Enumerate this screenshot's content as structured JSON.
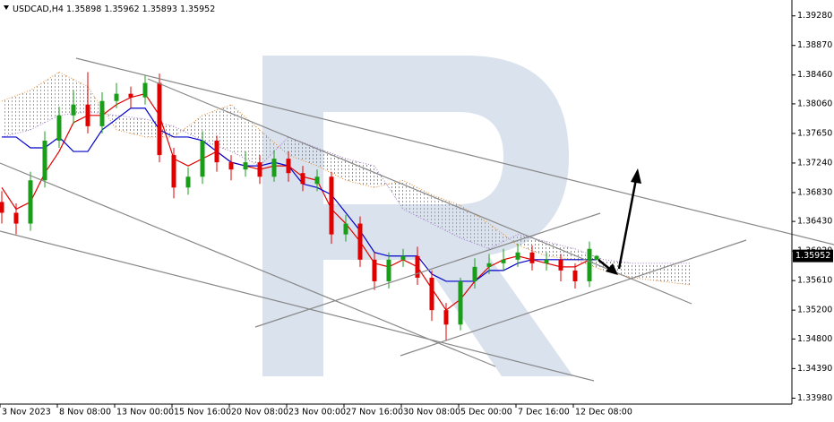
{
  "chart_data": {
    "type": "candlestick",
    "symbol": "USDCAD,H4",
    "x": [
      0,
      4,
      8,
      12,
      16,
      20,
      24,
      28,
      32,
      36,
      40,
      44,
      48,
      52,
      56,
      60,
      64,
      68,
      72,
      76,
      80,
      84,
      88,
      92,
      96,
      100,
      104,
      108,
      112,
      116,
      120,
      124,
      128,
      132,
      136,
      140,
      144,
      148,
      152,
      156,
      160,
      164,
      166
    ],
    "open": [
      1.367,
      1.3655,
      1.364,
      1.37,
      1.3755,
      1.379,
      1.3805,
      1.3775,
      1.381,
      1.382,
      1.3815,
      1.3835,
      1.3735,
      1.369,
      1.3705,
      1.3755,
      1.3725,
      1.3715,
      1.3725,
      1.3705,
      1.373,
      1.371,
      1.3695,
      1.3705,
      1.3625,
      1.364,
      1.359,
      1.356,
      1.359,
      1.3595,
      1.3565,
      1.352,
      1.35,
      1.356,
      1.358,
      1.3585,
      1.359,
      1.36,
      1.3585,
      1.359,
      1.3575,
      1.356,
      1.35898
    ],
    "high": [
      1.3685,
      1.3668,
      1.3712,
      1.3768,
      1.3802,
      1.3825,
      1.385,
      1.3822,
      1.3835,
      1.383,
      1.3845,
      1.3848,
      1.3745,
      1.3718,
      1.3768,
      1.3762,
      1.3735,
      1.374,
      1.3735,
      1.3742,
      1.374,
      1.372,
      1.3715,
      1.3712,
      1.3652,
      1.365,
      1.36,
      1.36,
      1.3605,
      1.3608,
      1.3575,
      1.353,
      1.3565,
      1.3592,
      1.3598,
      1.3605,
      1.3612,
      1.361,
      1.36,
      1.3598,
      1.3585,
      1.3615,
      1.35962
    ],
    "low": [
      1.364,
      1.3625,
      1.363,
      1.369,
      1.3745,
      1.3778,
      1.3765,
      1.3765,
      1.38,
      1.38,
      1.3805,
      1.3725,
      1.3675,
      1.368,
      1.3695,
      1.3712,
      1.37,
      1.3705,
      1.3695,
      1.3698,
      1.3698,
      1.3685,
      1.3685,
      1.3612,
      1.3615,
      1.358,
      1.3548,
      1.355,
      1.358,
      1.3555,
      1.3505,
      1.3478,
      1.3492,
      1.355,
      1.357,
      1.3575,
      1.358,
      1.3575,
      1.3575,
      1.356,
      1.355,
      1.3552,
      1.35893
    ],
    "close": [
      1.3655,
      1.364,
      1.37,
      1.3755,
      1.379,
      1.3805,
      1.3775,
      1.381,
      1.382,
      1.3815,
      1.3835,
      1.3735,
      1.369,
      1.3705,
      1.3755,
      1.3725,
      1.3715,
      1.3725,
      1.3705,
      1.373,
      1.371,
      1.3695,
      1.3705,
      1.3625,
      1.364,
      1.359,
      1.356,
      1.359,
      1.3595,
      1.3565,
      1.352,
      1.35,
      1.356,
      1.358,
      1.3585,
      1.359,
      1.36,
      1.3585,
      1.359,
      1.3575,
      1.356,
      1.3605,
      1.35952
    ],
    "up_color": "#1a9e1a",
    "down_color": "#e00000",
    "lines": [
      {
        "color": "#e00000",
        "values": [
          1.369,
          1.366,
          1.367,
          1.371,
          1.374,
          1.378,
          1.379,
          1.379,
          1.3805,
          1.3815,
          1.382,
          1.379,
          1.373,
          1.372,
          1.373,
          1.374,
          1.3725,
          1.372,
          1.3715,
          1.372,
          1.372,
          1.3705,
          1.37,
          1.366,
          1.364,
          1.3615,
          1.3585,
          1.358,
          1.359,
          1.358,
          1.355,
          1.352,
          1.3535,
          1.356,
          1.358,
          1.359,
          1.3595,
          1.359,
          1.3585,
          1.358,
          1.358,
          1.359,
          1.359
        ]
      },
      {
        "color": "#0000cc",
        "values": [
          1.376,
          1.376,
          1.3745,
          1.3745,
          1.376,
          1.374,
          1.374,
          1.377,
          1.3785,
          1.38,
          1.38,
          1.377,
          1.376,
          1.376,
          1.3755,
          1.374,
          1.3725,
          1.372,
          1.372,
          1.3725,
          1.372,
          1.3695,
          1.369,
          1.368,
          1.3655,
          1.363,
          1.36,
          1.3595,
          1.3595,
          1.3595,
          1.357,
          1.356,
          1.356,
          1.356,
          1.3575,
          1.3575,
          1.3585,
          1.359,
          1.359,
          1.359,
          1.359,
          1.359,
          1.359
        ]
      }
    ],
    "cloud": {
      "x": [
        0,
        8,
        16,
        24,
        32,
        40,
        48,
        56,
        64,
        72,
        80,
        88,
        96,
        104,
        112,
        120,
        128,
        136,
        144,
        152,
        160,
        168,
        176,
        184,
        192
      ],
      "span_a": [
        1.381,
        1.3825,
        1.385,
        1.383,
        1.377,
        1.376,
        1.376,
        1.379,
        1.3805,
        1.377,
        1.3735,
        1.372,
        1.37,
        1.369,
        1.37,
        1.368,
        1.3665,
        1.364,
        1.361,
        1.3595,
        1.359,
        1.3575,
        1.3565,
        1.356,
        1.3555
      ],
      "span_b": [
        1.376,
        1.377,
        1.379,
        1.3795,
        1.379,
        1.3785,
        1.3775,
        1.3755,
        1.374,
        1.372,
        1.376,
        1.3745,
        1.373,
        1.372,
        1.366,
        1.364,
        1.362,
        1.3605,
        1.3625,
        1.3615,
        1.3605,
        1.359,
        1.3585,
        1.3585,
        1.3585
      ],
      "up_color": "#e8923a",
      "down_color": "#a77bd0"
    },
    "xlim": [
      0,
      221
    ],
    "ylim": [
      1.3391,
      1.395
    ],
    "xticks": [
      {
        "value": 0,
        "label": "3 Nov 2023"
      },
      {
        "value": 16,
        "label": "8 Nov 08:00"
      },
      {
        "value": 32,
        "label": "13 Nov 00:00"
      },
      {
        "value": 48,
        "label": "15 Nov 16:00"
      },
      {
        "value": 64,
        "label": "20 Nov 08:00"
      },
      {
        "value": 80,
        "label": "23 Nov 00:00"
      },
      {
        "value": 96,
        "label": "27 Nov 16:00"
      },
      {
        "value": 112,
        "label": "30 Nov 08:00"
      },
      {
        "value": 128,
        "label": "5 Dec 00:00"
      },
      {
        "value": 144,
        "label": "7 Dec 16:00"
      },
      {
        "value": 160,
        "label": "12 Dec 08:00"
      }
    ],
    "yticks": [
      {
        "value": 1.3928,
        "label": "1.39280"
      },
      {
        "value": 1.3887,
        "label": "1.38870"
      },
      {
        "value": 1.3846,
        "label": "1.38460"
      },
      {
        "value": 1.3806,
        "label": "1.38060"
      },
      {
        "value": 1.3765,
        "label": "1.37650"
      },
      {
        "value": 1.3724,
        "label": "1.37240"
      },
      {
        "value": 1.3683,
        "label": "1.36830"
      },
      {
        "value": 1.3643,
        "label": "1.36430"
      },
      {
        "value": 1.3602,
        "label": "1.36020"
      },
      {
        "value": 1.3561,
        "label": "1.35610"
      },
      {
        "value": 1.352,
        "label": "1.35200"
      },
      {
        "value": 1.348,
        "label": "1.34800"
      },
      {
        "value": 1.3439,
        "label": "1.34390"
      },
      {
        "value": 1.3398,
        "label": "1.33980"
      }
    ],
    "grid": false
  }
}
